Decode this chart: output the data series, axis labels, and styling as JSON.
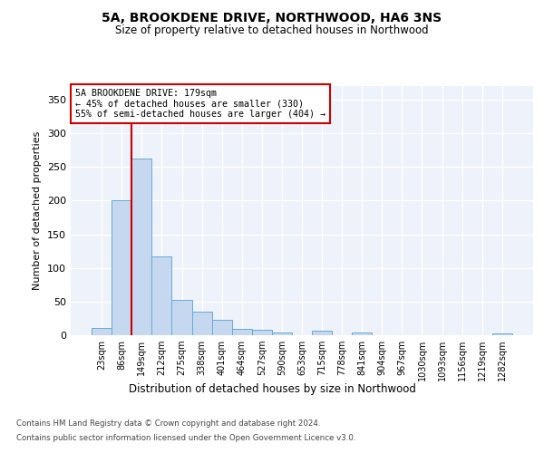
{
  "title": "5A, BROOKDENE DRIVE, NORTHWOOD, HA6 3NS",
  "subtitle": "Size of property relative to detached houses in Northwood",
  "xlabel": "Distribution of detached houses by size in Northwood",
  "ylabel": "Number of detached properties",
  "categories": [
    "23sqm",
    "86sqm",
    "149sqm",
    "212sqm",
    "275sqm",
    "338sqm",
    "401sqm",
    "464sqm",
    "527sqm",
    "590sqm",
    "653sqm",
    "715sqm",
    "778sqm",
    "841sqm",
    "904sqm",
    "967sqm",
    "1030sqm",
    "1093sqm",
    "1156sqm",
    "1219sqm",
    "1282sqm"
  ],
  "values": [
    11,
    200,
    263,
    117,
    52,
    35,
    23,
    9,
    8,
    4,
    0,
    7,
    0,
    4,
    0,
    0,
    0,
    0,
    0,
    0,
    3
  ],
  "bar_color": "#c5d8f0",
  "bar_edgecolor": "#6aaad4",
  "background_color": "#eef2fa",
  "grid_color": "#ffffff",
  "annotation_box_color": "#ffffff",
  "annotation_box_edgecolor": "#cc0000",
  "property_line_color": "#cc0000",
  "annotation_line1": "5A BROOKDENE DRIVE: 179sqm",
  "annotation_line2": "← 45% of detached houses are smaller (330)",
  "annotation_line3": "55% of semi-detached houses are larger (404) →",
  "ylim": [
    0,
    370
  ],
  "yticks": [
    0,
    50,
    100,
    150,
    200,
    250,
    300,
    350
  ],
  "footer_line1": "Contains HM Land Registry data © Crown copyright and database right 2024.",
  "footer_line2": "Contains public sector information licensed under the Open Government Licence v3.0."
}
